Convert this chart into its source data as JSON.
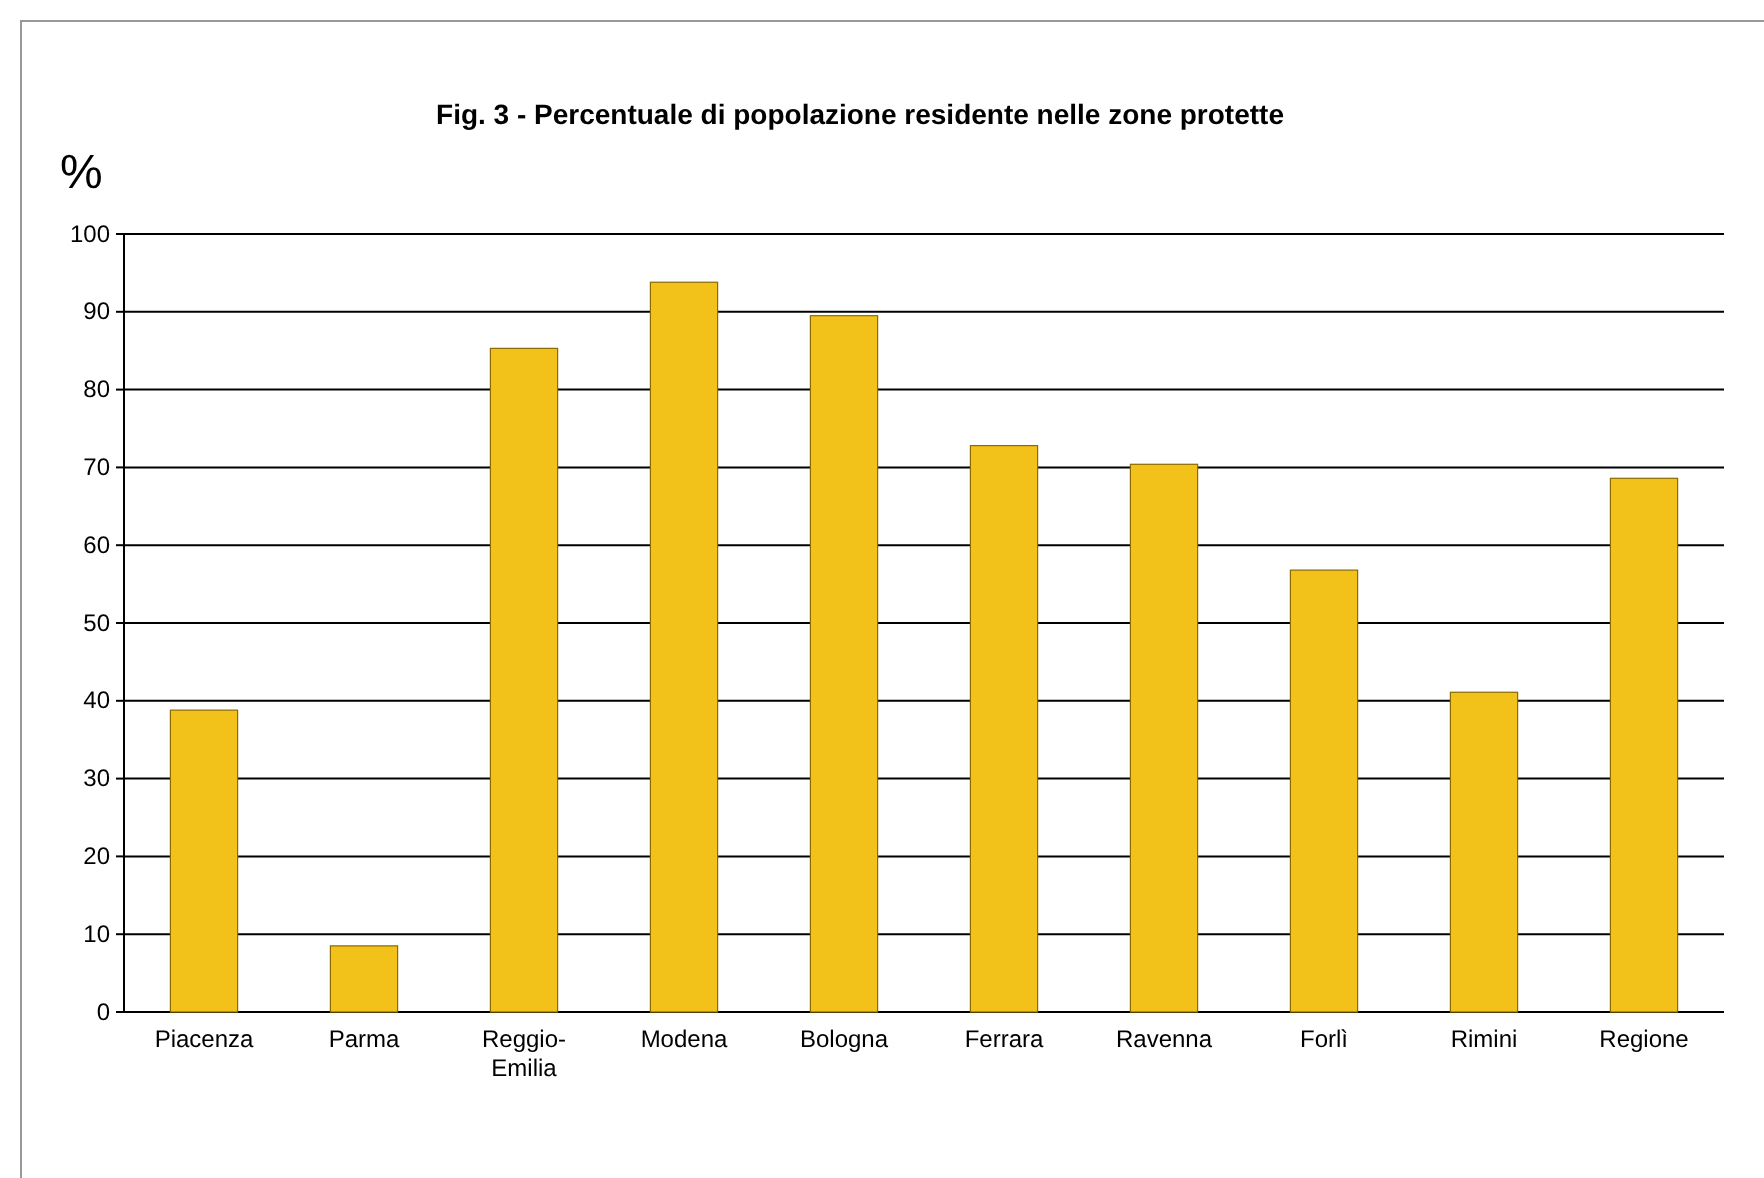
{
  "chart_data": {
    "type": "bar",
    "title": "Fig. 3 - Percentuale di popolazione residente nelle zone protette",
    "ylabel": "%",
    "categories": [
      "Piacenza",
      "Parma",
      "Reggio-Emilia",
      "Modena",
      "Bologna",
      "Ferrara",
      "Ravenna",
      "Forlì",
      "Rimini",
      "Regione"
    ],
    "values": [
      38.8,
      8.5,
      85.3,
      93.8,
      89.5,
      72.8,
      70.4,
      56.8,
      41.1,
      68.6
    ],
    "color": "#f2c11a",
    "ylim": [
      0,
      100
    ],
    "yticks": [
      0,
      10,
      20,
      30,
      40,
      50,
      60,
      70,
      80,
      90,
      100
    ],
    "grid": "y"
  }
}
